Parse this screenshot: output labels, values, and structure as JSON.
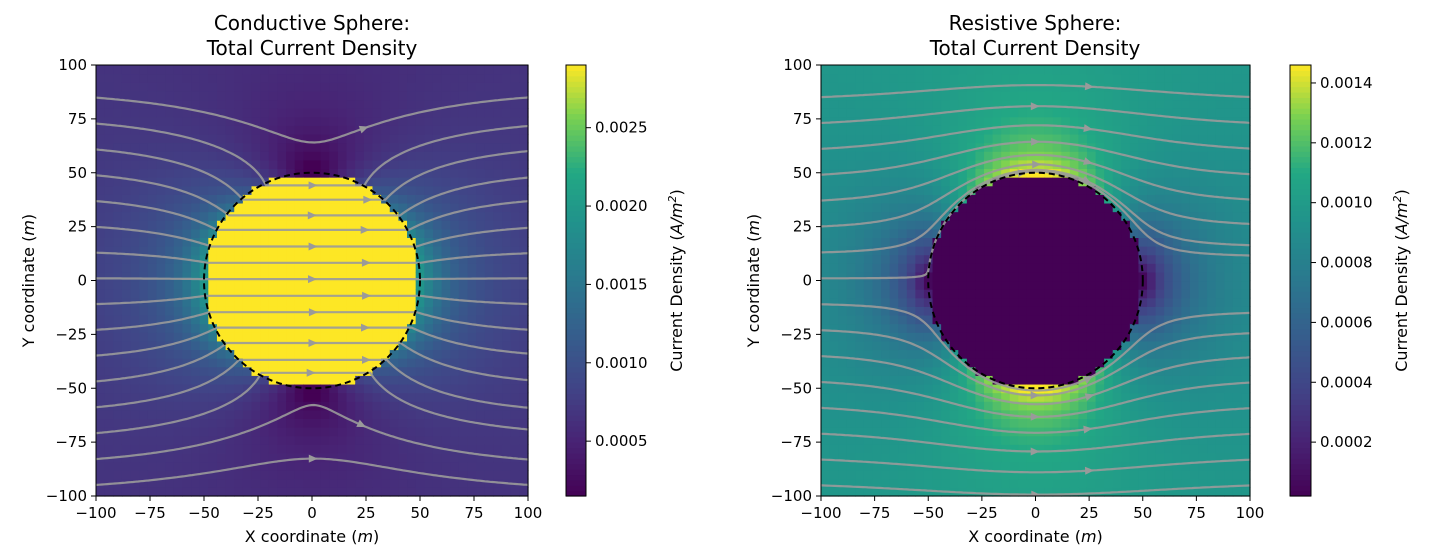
{
  "chart_data": [
    {
      "type": "heatmap",
      "title_lines": [
        "Conductive Sphere:",
        "Total Current Density"
      ],
      "xlabel": "X coordinate",
      "ylabel": "Y coordinate",
      "axis_unit": "m",
      "xlim": [
        -100,
        100
      ],
      "ylim": [
        -100,
        100
      ],
      "xticks": [
        -100,
        -75,
        -50,
        -25,
        0,
        25,
        50,
        75,
        100
      ],
      "yticks": [
        -100,
        -75,
        -50,
        -25,
        0,
        25,
        50,
        75,
        100
      ],
      "sphere_radius": 50,
      "sphere_type": "conductive",
      "colorbar": {
        "label": "Current Density",
        "unit": "A/m",
        "unit_exponent": "2",
        "range": [
          0.00015,
          0.0029
        ],
        "ticks": [
          "0.0005",
          "0.0010",
          "0.0015",
          "0.0020",
          "0.0025"
        ],
        "tick_values": [
          0.0005,
          0.001,
          0.0015,
          0.002,
          0.0025
        ]
      },
      "colormap": "viridis",
      "streamlines": "gray"
    },
    {
      "type": "heatmap",
      "title_lines": [
        "Resistive Sphere:",
        "Total Current Density"
      ],
      "xlabel": "X coordinate",
      "ylabel": "Y coordinate",
      "axis_unit": "m",
      "xlim": [
        -100,
        100
      ],
      "ylim": [
        -100,
        100
      ],
      "xticks": [
        -100,
        -75,
        -50,
        -25,
        0,
        25,
        50,
        75,
        100
      ],
      "yticks": [
        -100,
        -75,
        -50,
        -25,
        0,
        25,
        50,
        75,
        100
      ],
      "sphere_radius": 50,
      "sphere_type": "resistive",
      "colorbar": {
        "label": "Current Density",
        "unit": "A/m",
        "unit_exponent": "2",
        "range": [
          2e-05,
          0.00146
        ],
        "ticks": [
          "0.0002",
          "0.0004",
          "0.0006",
          "0.0008",
          "0.0010",
          "0.0012",
          "0.0014"
        ],
        "tick_values": [
          0.0002,
          0.0004,
          0.0006,
          0.0008,
          0.001,
          0.0012,
          0.0014
        ]
      },
      "colormap": "viridis",
      "streamlines": "gray"
    }
  ]
}
